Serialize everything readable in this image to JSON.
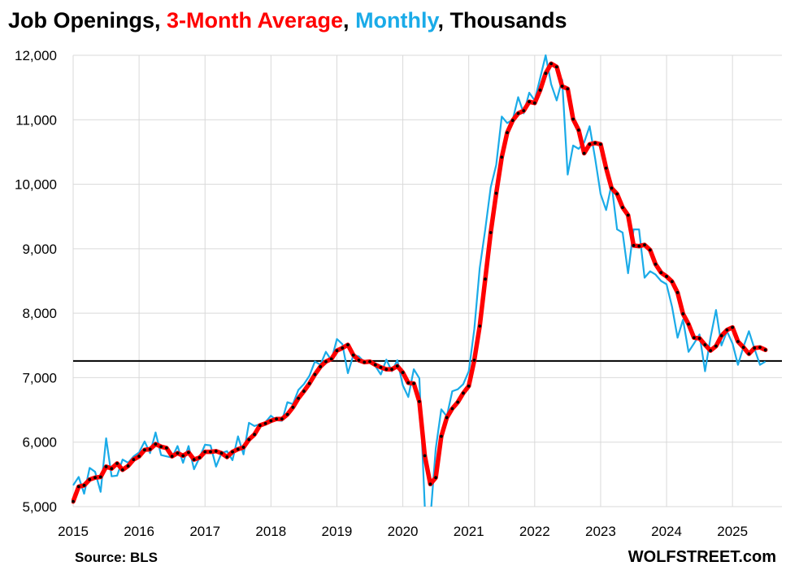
{
  "chart_data": {
    "type": "line",
    "title_parts": [
      "Job Openings, ",
      "3-Month Average",
      ", ",
      "Monthly",
      ", Thousands"
    ],
    "source": "Source: BLS",
    "brand": "WOLFSTREET.com",
    "xlim": [
      2015.0,
      2025.75
    ],
    "ylim": [
      5000,
      12000
    ],
    "y_ticks": [
      5000,
      6000,
      7000,
      8000,
      9000,
      10000,
      11000,
      12000
    ],
    "y_tick_labels": [
      "5,000",
      "6,000",
      "7,000",
      "8,000",
      "9,000",
      "10,000",
      "11,000",
      "12,000"
    ],
    "x_ticks": [
      2015,
      2016,
      2017,
      2018,
      2019,
      2020,
      2021,
      2022,
      2023,
      2024,
      2025
    ],
    "x_tick_labels": [
      "2015",
      "2016",
      "2017",
      "2018",
      "2019",
      "2020",
      "2021",
      "2022",
      "2023",
      "2024",
      "2025"
    ],
    "grid": true,
    "reference_line": 7260,
    "colors": {
      "monthly": "#1aabe8",
      "average": "#ff0000",
      "markers": "#000000",
      "reference": "#000000"
    },
    "start": "2015-01",
    "series": [
      {
        "name": "Monthly",
        "values": [
          5330,
          5460,
          5200,
          5600,
          5540,
          5230,
          6060,
          5470,
          5480,
          5730,
          5680,
          5780,
          5840,
          6010,
          5830,
          6150,
          5800,
          5780,
          5760,
          5940,
          5680,
          5940,
          5580,
          5760,
          5960,
          5950,
          5620,
          5830,
          5860,
          5720,
          6090,
          5810,
          6300,
          6250,
          6280,
          6310,
          6410,
          6340,
          6330,
          6620,
          6590,
          6810,
          6900,
          7030,
          7250,
          7200,
          7400,
          7270,
          7600,
          7520,
          7070,
          7350,
          7330,
          7240,
          7250,
          7180,
          7050,
          7280,
          7100,
          7270,
          6880,
          6700,
          7130,
          6990,
          5000,
          4800,
          5900,
          6510,
          6400,
          6790,
          6820,
          6900,
          7100,
          7750,
          8700,
          9300,
          9950,
          10300,
          11050,
          10950,
          11000,
          11350,
          11100,
          11420,
          11300,
          11650,
          12000,
          11550,
          11300,
          11620,
          10150,
          10600,
          10550,
          10650,
          10900,
          10400,
          9850,
          9600,
          10000,
          9300,
          9250,
          8620,
          9300,
          9300,
          8550,
          8650,
          8600,
          8500,
          8450,
          8100,
          7620,
          7900,
          7400,
          7530,
          7670,
          7100,
          7620,
          8050,
          7500,
          7720,
          7530,
          7200,
          7480,
          7720,
          7450,
          7200,
          7250
        ]
      },
      {
        "name": "3-Month Average",
        "values": [
          5080,
          5310,
          5330,
          5420,
          5450,
          5460,
          5620,
          5590,
          5670,
          5570,
          5630,
          5730,
          5780,
          5880,
          5890,
          5970,
          5930,
          5910,
          5780,
          5830,
          5790,
          5840,
          5730,
          5760,
          5850,
          5850,
          5860,
          5830,
          5770,
          5850,
          5890,
          5920,
          6040,
          6120,
          6260,
          6290,
          6330,
          6360,
          6360,
          6430,
          6540,
          6680,
          6790,
          6910,
          7050,
          7170,
          7250,
          7290,
          7420,
          7460,
          7510,
          7350,
          7270,
          7240,
          7250,
          7200,
          7160,
          7130,
          7130,
          7180,
          7080,
          6920,
          6910,
          6630,
          5790,
          5350,
          5450,
          6090,
          6380,
          6520,
          6620,
          6760,
          6870,
          7270,
          7800,
          8530,
          9250,
          9860,
          10420,
          10800,
          10990,
          11100,
          11140,
          11280,
          11260,
          11460,
          11720,
          11870,
          11820,
          11520,
          11480,
          11010,
          10840,
          10480,
          10620,
          10640,
          10620,
          10250,
          9940,
          9850,
          9640,
          9520,
          9050,
          9040,
          9060,
          8980,
          8760,
          8630,
          8570,
          8490,
          8320,
          7990,
          7830,
          7620,
          7610,
          7510,
          7420,
          7490,
          7650,
          7740,
          7780,
          7560,
          7470,
          7370,
          7460,
          7470,
          7430
        ]
      }
    ]
  }
}
